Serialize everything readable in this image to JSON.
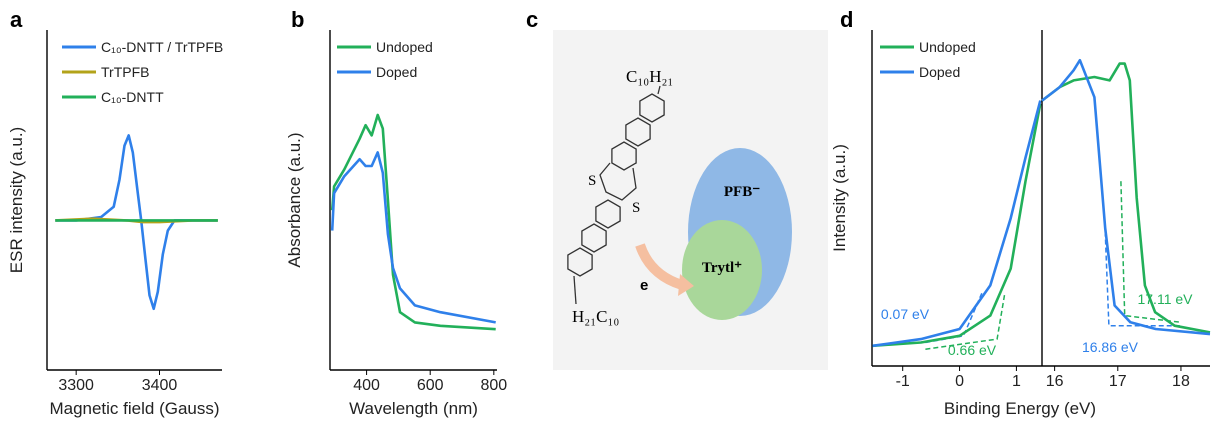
{
  "chart_data": [
    {
      "type": "line",
      "label": "a",
      "x_label": "Magnetic field (Gauss)",
      "y_label": "ESR intensity (a.u.)",
      "xlim": [
        3265,
        3475
      ],
      "xticks": [
        3300,
        3400
      ],
      "ylim": [
        0,
        1
      ],
      "legend": "upper left",
      "series": [
        {
          "name": "C₁₀-DNTT / TrTPFB",
          "color": "#2f80ea",
          "x": [
            3275,
            3300,
            3330,
            3345,
            3352,
            3358,
            3363,
            3368,
            3374,
            3378,
            3383,
            3388,
            3393,
            3398,
            3404,
            3410,
            3418,
            3440,
            3470
          ],
          "values": [
            0.44,
            0.44,
            0.45,
            0.48,
            0.56,
            0.66,
            0.69,
            0.64,
            0.52,
            0.44,
            0.33,
            0.22,
            0.18,
            0.23,
            0.34,
            0.41,
            0.44,
            0.44,
            0.44
          ]
        },
        {
          "name": "TrTPFB",
          "color": "#b3a31a",
          "x": [
            3275,
            3320,
            3360,
            3380,
            3400,
            3440,
            3470
          ],
          "values": [
            0.44,
            0.445,
            0.44,
            0.435,
            0.435,
            0.44,
            0.44
          ]
        },
        {
          "name": "C₁₀-DNTT",
          "color": "#22b05a",
          "x": [
            3275,
            3320,
            3360,
            3400,
            3440,
            3470
          ],
          "values": [
            0.44,
            0.44,
            0.44,
            0.44,
            0.44,
            0.44
          ]
        }
      ]
    },
    {
      "type": "line",
      "label": "b",
      "x_label": "Wavelength (nm)",
      "y_label": "Absorbance (a.u.)",
      "xlim": [
        285,
        810
      ],
      "xticks": [
        400,
        600,
        800
      ],
      "ylim": [
        0,
        1
      ],
      "legend": "upper left",
      "series": [
        {
          "name": "Undoped",
          "color": "#22b05a",
          "x": [
            292,
            298,
            330,
            378,
            397,
            416,
            435,
            451,
            467,
            483,
            505,
            552,
            632,
            806
          ],
          "values": [
            0.47,
            0.54,
            0.59,
            0.68,
            0.72,
            0.69,
            0.75,
            0.71,
            0.5,
            0.28,
            0.17,
            0.14,
            0.13,
            0.12
          ]
        },
        {
          "name": "Doped",
          "color": "#2f80ea",
          "x": [
            292,
            298,
            330,
            378,
            397,
            416,
            435,
            451,
            467,
            483,
            505,
            552,
            632,
            806
          ],
          "values": [
            0.41,
            0.52,
            0.57,
            0.62,
            0.6,
            0.6,
            0.64,
            0.58,
            0.4,
            0.3,
            0.24,
            0.19,
            0.17,
            0.14
          ]
        }
      ]
    },
    {
      "type": "line",
      "label": "d",
      "y_label": "Intensity (a.u.)",
      "xlim": [
        -1.54,
        1.45
      ],
      "xticks": [
        -1,
        0,
        1
      ],
      "ylim": [
        0,
        1
      ],
      "legend": "upper left",
      "series": [
        {
          "name": "Undoped",
          "color": "#22b05a",
          "x": [
            -1.53,
            -0.68,
            0,
            0.54,
            0.9,
            1.16,
            1.42
          ],
          "values": [
            0.06,
            0.07,
            0.09,
            0.15,
            0.29,
            0.55,
            0.78
          ]
        },
        {
          "name": "Doped",
          "color": "#2f80ea",
          "x": [
            -1.53,
            -0.68,
            0,
            0.54,
            0.9,
            1.16,
            1.42
          ],
          "values": [
            0.06,
            0.08,
            0.11,
            0.24,
            0.44,
            0.62,
            0.79
          ]
        }
      ],
      "fit_lines": [
        {
          "color": "#2f80ea",
          "x": [
            -0.6,
            0.07,
            0.4
          ],
          "values": [
            0.07,
            0.09,
            0.22
          ]
        },
        {
          "color": "#22b05a",
          "x": [
            -0.6,
            0.66,
            0.8
          ],
          "values": [
            0.05,
            0.08,
            0.22
          ]
        }
      ],
      "annotations": [
        {
          "text": "0.07 eV",
          "color": "#2f80ea"
        },
        {
          "text": "0.66 eV",
          "color": "#22b05a"
        }
      ]
    },
    {
      "type": "line",
      "x_label": "Binding Energy (eV)",
      "xlim": [
        15.8,
        18.46
      ],
      "xticks": [
        16,
        17,
        18
      ],
      "ylim": [
        0,
        1
      ],
      "series": [
        {
          "color": "#22b05a",
          "x": [
            15.8,
            16.08,
            16.3,
            16.63,
            16.87,
            17.03,
            17.11,
            17.19,
            17.3,
            17.43,
            17.59,
            17.9,
            18.46
          ],
          "values": [
            0.79,
            0.83,
            0.85,
            0.86,
            0.85,
            0.9,
            0.9,
            0.85,
            0.5,
            0.24,
            0.16,
            0.12,
            0.1
          ]
        },
        {
          "color": "#2f80ea",
          "x": [
            15.8,
            16.08,
            16.3,
            16.4,
            16.63,
            16.8,
            16.95,
            17.2,
            17.6,
            18.46
          ],
          "values": [
            0.79,
            0.83,
            0.88,
            0.91,
            0.8,
            0.41,
            0.18,
            0.13,
            0.11,
            0.095
          ]
        }
      ],
      "fit_lines": [
        {
          "color": "#2f80ea",
          "x": [
            16.8,
            16.86,
            18.0
          ],
          "values": [
            0.4,
            0.12,
            0.12
          ]
        },
        {
          "color": "#22b05a",
          "x": [
            17.05,
            17.11,
            18.0
          ],
          "values": [
            0.55,
            0.15,
            0.13
          ]
        }
      ],
      "annotations": [
        {
          "text": "17.11 eV",
          "color": "#22b05a"
        },
        {
          "text": "16.86 eV",
          "color": "#2f80ea"
        }
      ]
    }
  ],
  "diagram": {
    "label": "c",
    "top_chain": "C₁₀H₂₁",
    "bottom_chain": "H₂₁C₁₀",
    "sulfur": "S",
    "anion": "PFB⁻",
    "cation": "Trytl⁺",
    "electron": "e"
  }
}
